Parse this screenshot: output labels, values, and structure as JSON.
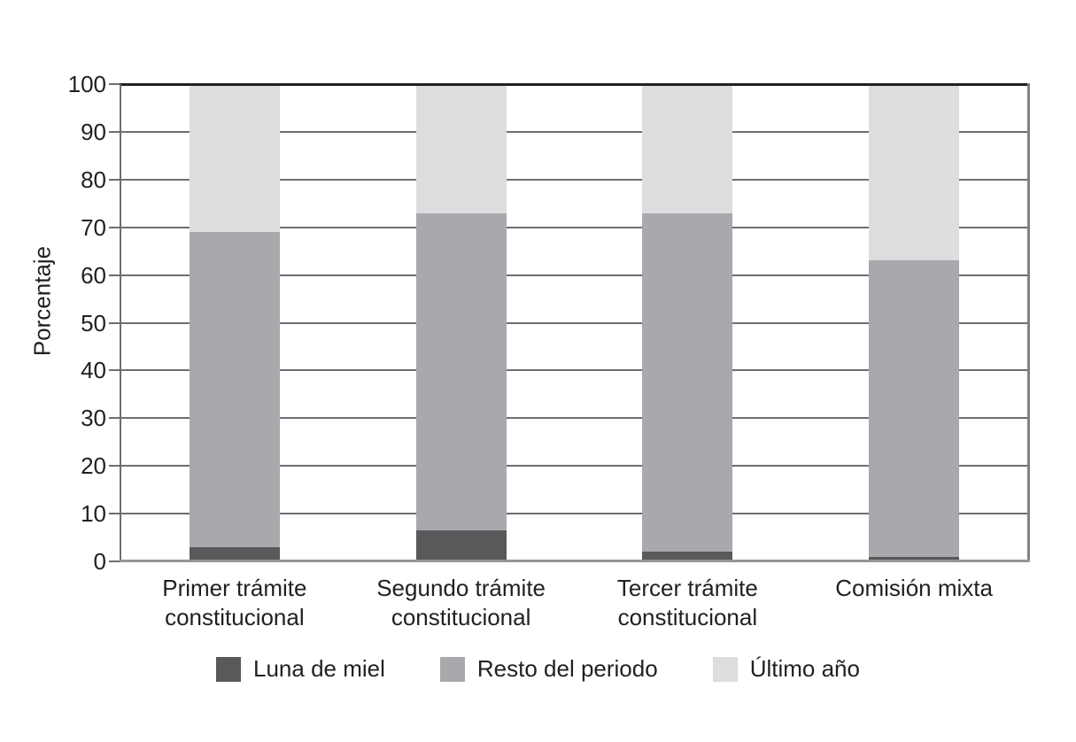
{
  "chart_data": {
    "type": "bar",
    "stacked": true,
    "title": "",
    "ylabel": "Porcentaje",
    "xlabel": "",
    "ylim": [
      0,
      100
    ],
    "yticks": [
      0,
      10,
      20,
      30,
      40,
      50,
      60,
      70,
      80,
      90,
      100
    ],
    "grid": true,
    "legend_position": "bottom",
    "categories": [
      "Primer trámite\nconstitucional",
      "Segundo trámite\nconstitucional",
      "Tercer trámite\nconstitucional",
      "Comisión mixta"
    ],
    "series": [
      {
        "name": "Luna de miel",
        "color": "#58595b",
        "values": [
          3,
          6.5,
          2,
          1
        ]
      },
      {
        "name": "Resto del periodo",
        "color": "#a7a9ac",
        "values": [
          66,
          66.5,
          71,
          62
        ]
      },
      {
        "name": "Último año",
        "color": "#dcddde",
        "values": [
          31,
          27,
          27,
          37
        ]
      }
    ],
    "colors": {
      "text": "#231f20",
      "gridline": "#6d6e71",
      "frame_top": "#231f20",
      "frame_right": "#808285",
      "axis_left": "#6d6e71",
      "axis_bottom": "#939598",
      "background": "#ffffff"
    }
  }
}
